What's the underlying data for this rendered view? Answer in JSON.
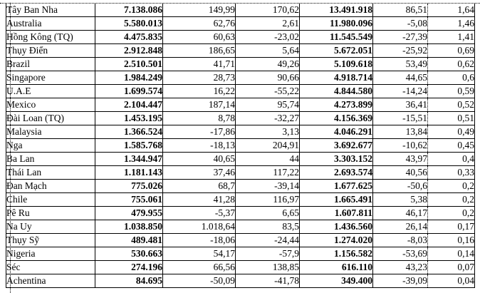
{
  "colors": {
    "border": "#000000",
    "text": "#000000",
    "background": "#ffffff"
  },
  "table": {
    "rows": [
      [
        "Tây Ban Nha",
        "7.138.086",
        "149,99",
        "170,62",
        "13.491.918",
        "86,51",
        "1,64"
      ],
      [
        "Australia",
        "5.580.013",
        "62,76",
        "2,61",
        "11.980.096",
        "-5,08",
        "1,46"
      ],
      [
        "Hồng Kông (TQ)",
        "4.475.835",
        "60,63",
        "-23,02",
        "11.545.549",
        "-27,39",
        "1,41"
      ],
      [
        "Thụy Điển",
        "2.912.848",
        "186,65",
        "5,64",
        "5.672.051",
        "-25,92",
        "0,69"
      ],
      [
        "Brazil",
        "2.510.501",
        "41,71",
        "49,26",
        "5.109.618",
        "53,49",
        "0,62"
      ],
      [
        "Singapore",
        "1.984.249",
        "28,73",
        "90,66",
        "4.918.714",
        "44,65",
        "0,6"
      ],
      [
        "U.A.E",
        "1.699.574",
        "16,22",
        "-55,22",
        "4.844.580",
        "-14,24",
        "0,59"
      ],
      [
        "Mexico",
        "2.104.447",
        "187,14",
        "95,74",
        "4.273.899",
        "36,41",
        "0,52"
      ],
      [
        "Đài Loan (TQ)",
        "1.453.195",
        "8,78",
        "-32,27",
        "4.156.369",
        "-15,51",
        "0,51"
      ],
      [
        "Malaysia",
        "1.366.524",
        "-17,86",
        "3,13",
        "4.046.291",
        "13,84",
        "0,49"
      ],
      [
        "Nga",
        "1.585.768",
        "-18,13",
        "204,91",
        "3.692.677",
        "-10,62",
        "0,45"
      ],
      [
        "Ba Lan",
        "1.344.947",
        "40,65",
        "44",
        "3.303.152",
        "43,97",
        "0,4"
      ],
      [
        "Thái Lan",
        "1.181.143",
        "37,46",
        "117,22",
        "2.693.574",
        "40,56",
        "0,33"
      ],
      [
        "Đan Mạch",
        "775.026",
        "68,7",
        "-39,14",
        "1.677.625",
        "-50,6",
        "0,2"
      ],
      [
        "Chile",
        "755.061",
        "41,28",
        "116,97",
        "1.665.491",
        "5,38",
        "0,2"
      ],
      [
        "Pê Ru",
        "479.955",
        "-5,37",
        "6,65",
        "1.607.811",
        "46,17",
        "0,2"
      ],
      [
        "Na Uy",
        "1.038.850",
        "1.018,64",
        "83,5",
        "1.436.560",
        "26,14",
        "0,17"
      ],
      [
        "Thụy Sỹ",
        "489.481",
        "-18,06",
        "-24,44",
        "1.274.020",
        "-8,03",
        "0,16"
      ],
      [
        "Nigeria",
        "530.663",
        "54,17",
        "-57,9",
        "1.156.582",
        "-53,69",
        "0,14"
      ],
      [
        "Séc",
        "274.196",
        "66,56",
        "138,85",
        "616.110",
        "43,23",
        "0,07"
      ],
      [
        "Achentina",
        "84.695",
        "-50,09",
        "-41,78",
        "349.400",
        "-39,09",
        "0,04"
      ]
    ]
  }
}
